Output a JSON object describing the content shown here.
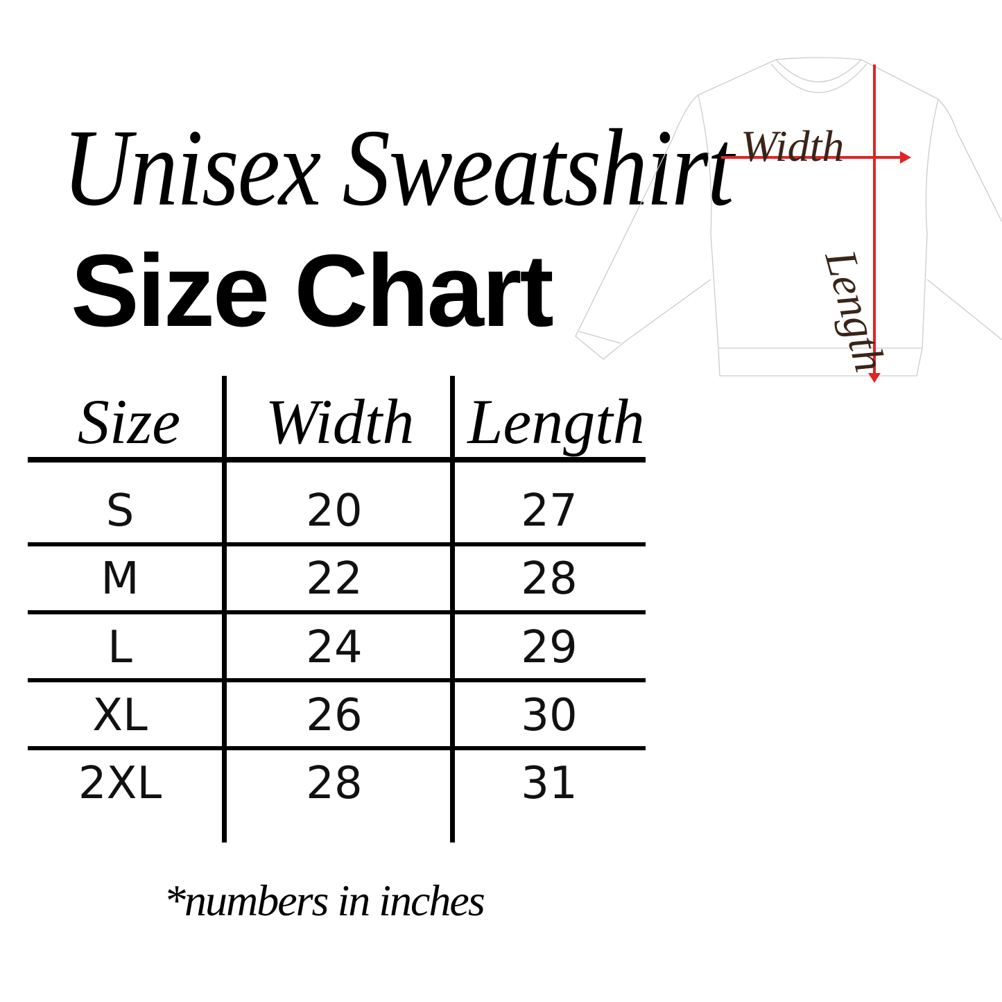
{
  "title": {
    "script": "Unisex Sweatshirt",
    "bold": "Size Chart"
  },
  "diagram": {
    "width_label": "Width",
    "length_label": "Length",
    "arrow_color": "#e02424",
    "outline_color": "#cccccc"
  },
  "table": {
    "headers": [
      "Size",
      "Width",
      "Length"
    ],
    "rows": [
      {
        "size": "S",
        "width": "20",
        "length": "27"
      },
      {
        "size": "M",
        "width": "22",
        "length": "28"
      },
      {
        "size": "L",
        "width": "24",
        "length": "29"
      },
      {
        "size": "XL",
        "width": "26",
        "length": "30"
      },
      {
        "size": "2XL",
        "width": "28",
        "length": "31"
      }
    ]
  },
  "note": "*numbers in inches"
}
